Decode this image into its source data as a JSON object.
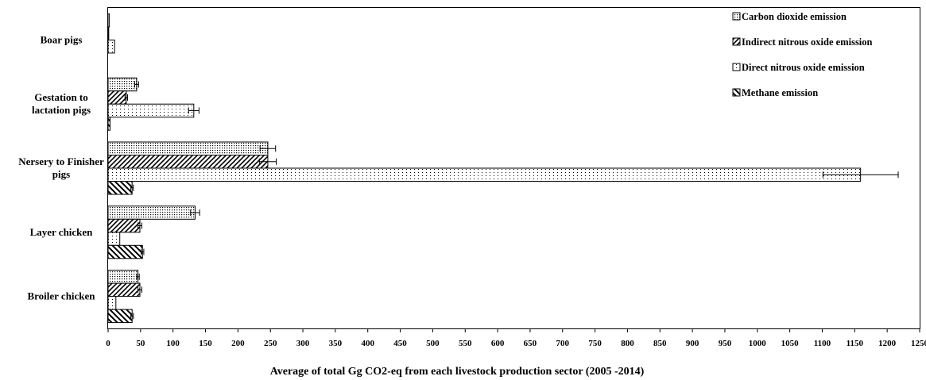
{
  "chart_data": {
    "type": "bar",
    "orientation": "horizontal",
    "xlabel": "Average of total Gg CO2-eq from each livestock production sector (2005 -2014)",
    "ylabel": "",
    "xlim": [
      0,
      1250
    ],
    "x_ticks": [
      0,
      50,
      100,
      150,
      200,
      250,
      300,
      350,
      400,
      450,
      500,
      550,
      600,
      650,
      700,
      750,
      800,
      850,
      900,
      950,
      1000,
      1050,
      1100,
      1150,
      1200,
      1250
    ],
    "grid": false,
    "legend_position": "top-right",
    "categories": [
      [
        "Boar pigs"
      ],
      [
        "Gestation to",
        "lactation pigs"
      ],
      [
        "Nersery to Finisher",
        "pigs"
      ],
      [
        "Layer chicken"
      ],
      [
        "Broiler chicken"
      ]
    ],
    "series": [
      {
        "name": "Carbon dioxide emission",
        "pattern": "dots-dense",
        "values": [
          2,
          44,
          246,
          134,
          46
        ],
        "errors": [
          0,
          3,
          12,
          7,
          2
        ]
      },
      {
        "name": "Indirect nitrous oxide emission",
        "pattern": "diagonal-right",
        "values": [
          1,
          28,
          246,
          49,
          49
        ],
        "errors": [
          0,
          2,
          13,
          3,
          3
        ]
      },
      {
        "name": "Direct nitrous oxide emission",
        "pattern": "dots-sparse",
        "values": [
          10,
          132,
          1159,
          18,
          12
        ],
        "errors": [
          0,
          8,
          58,
          0,
          0
        ]
      },
      {
        "name": "Methane emission",
        "pattern": "diagonal-left",
        "values": [
          0,
          3,
          37,
          53,
          37
        ],
        "errors": [
          0,
          0,
          2,
          2,
          2
        ]
      }
    ]
  }
}
